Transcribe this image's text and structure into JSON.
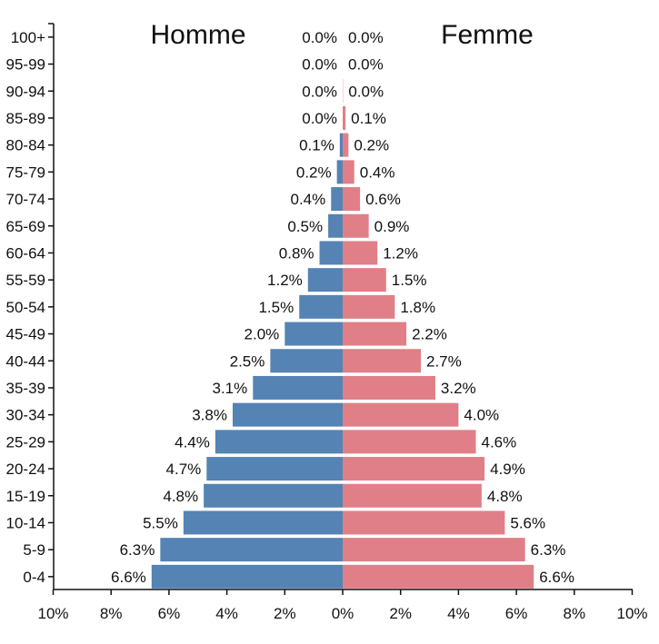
{
  "chart_data": {
    "type": "bar",
    "orientation": "horizontal-diverging",
    "categories": [
      "100+",
      "95-99",
      "90-94",
      "85-89",
      "80-84",
      "75-79",
      "70-74",
      "65-69",
      "60-64",
      "55-59",
      "50-54",
      "45-49",
      "40-44",
      "35-39",
      "30-34",
      "25-29",
      "20-24",
      "15-19",
      "10-14",
      "5-9",
      "0-4"
    ],
    "series": [
      {
        "name": "Homme",
        "color": "#5583b4",
        "values": [
          0.0,
          0.0,
          0.0,
          0.0,
          0.1,
          0.2,
          0.4,
          0.5,
          0.8,
          1.2,
          1.5,
          2.0,
          2.5,
          3.1,
          3.8,
          4.4,
          4.7,
          4.8,
          5.5,
          6.3,
          6.6
        ],
        "labels": [
          "0.0%",
          "0.0%",
          "0.0%",
          "0.0%",
          "0.1%",
          "0.2%",
          "0.4%",
          "0.5%",
          "0.8%",
          "1.2%",
          "1.5%",
          "2.0%",
          "2.5%",
          "3.1%",
          "3.8%",
          "4.4%",
          "4.7%",
          "4.8%",
          "5.5%",
          "6.3%",
          "6.6%"
        ]
      },
      {
        "name": "Femme",
        "color": "#e07f87",
        "values": [
          0.0,
          0.0,
          0.01,
          0.1,
          0.2,
          0.4,
          0.6,
          0.9,
          1.2,
          1.5,
          1.8,
          2.2,
          2.7,
          3.2,
          4.0,
          4.6,
          4.9,
          4.8,
          5.6,
          6.3,
          6.6
        ],
        "labels": [
          "0.0%",
          "0.0%",
          "0.0%",
          "0.1%",
          "0.2%",
          "0.4%",
          "0.6%",
          "0.9%",
          "1.2%",
          "1.5%",
          "1.8%",
          "2.2%",
          "2.7%",
          "3.2%",
          "4.0%",
          "4.6%",
          "4.9%",
          "4.8%",
          "5.6%",
          "6.3%",
          "6.6%"
        ]
      }
    ],
    "xlim": [
      -10,
      10
    ],
    "xticks": [
      -10,
      -8,
      -6,
      -4,
      -2,
      0,
      2,
      4,
      6,
      8,
      10
    ],
    "xtick_labels": [
      "10%",
      "8%",
      "6%",
      "4%",
      "2%",
      "0%",
      "2%",
      "4%",
      "6%",
      "8%",
      "10%"
    ],
    "xlabel": "",
    "ylabel": "",
    "title": "",
    "legend": [
      "Homme",
      "Femme"
    ],
    "legend_placement": "top",
    "grid": false
  }
}
